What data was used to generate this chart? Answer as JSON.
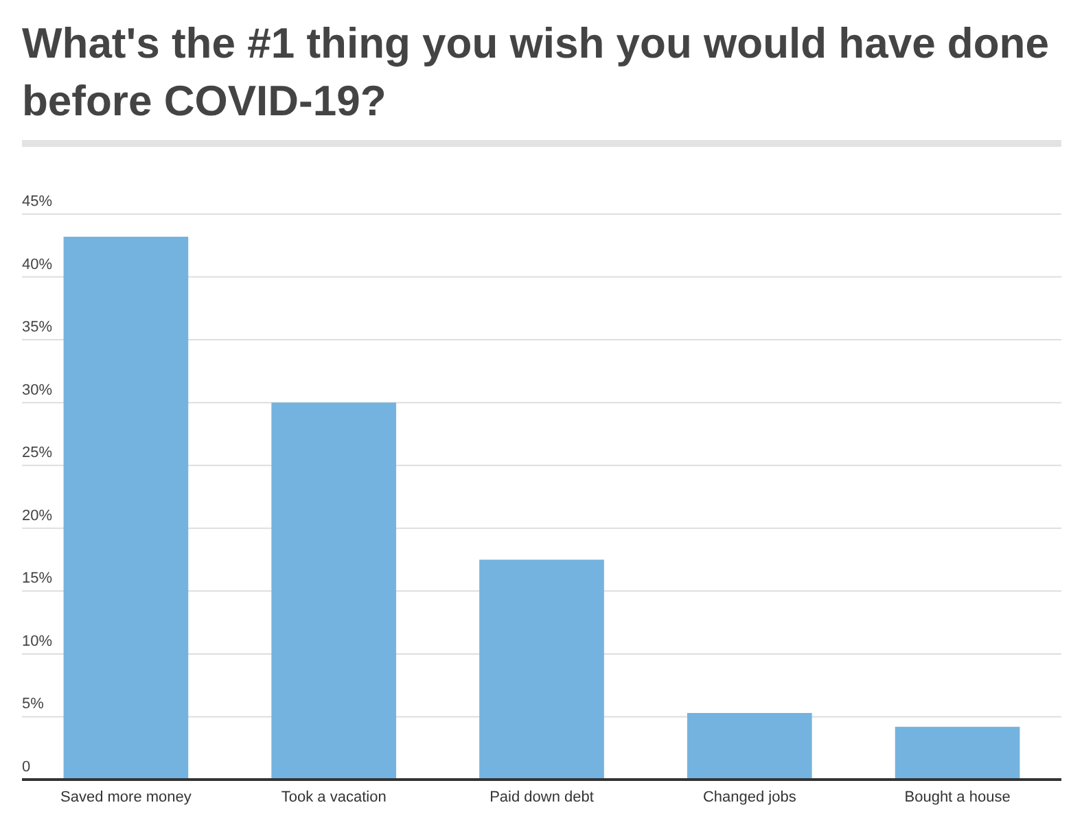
{
  "chart_data": {
    "type": "bar",
    "title": "What's the #1 thing you wish you would have done before COVID-19?",
    "categories": [
      "Saved more money",
      "Took a vacation",
      "Paid down debt",
      "Changed jobs",
      "Bought a house"
    ],
    "values": [
      43.2,
      30.0,
      17.5,
      5.3,
      4.2
    ],
    "color": "#74b3e0",
    "ylim": [
      0,
      45
    ],
    "yticks": [
      {
        "value": 0,
        "label": "0"
      },
      {
        "value": 5,
        "label": "5%"
      },
      {
        "value": 10,
        "label": "10%"
      },
      {
        "value": 15,
        "label": "15%"
      },
      {
        "value": 20,
        "label": "20%"
      },
      {
        "value": 25,
        "label": "25%"
      },
      {
        "value": 30,
        "label": "30%"
      },
      {
        "value": 35,
        "label": "35%"
      },
      {
        "value": 40,
        "label": "40%"
      },
      {
        "value": 45,
        "label": "45%"
      }
    ],
    "grid": "y"
  }
}
